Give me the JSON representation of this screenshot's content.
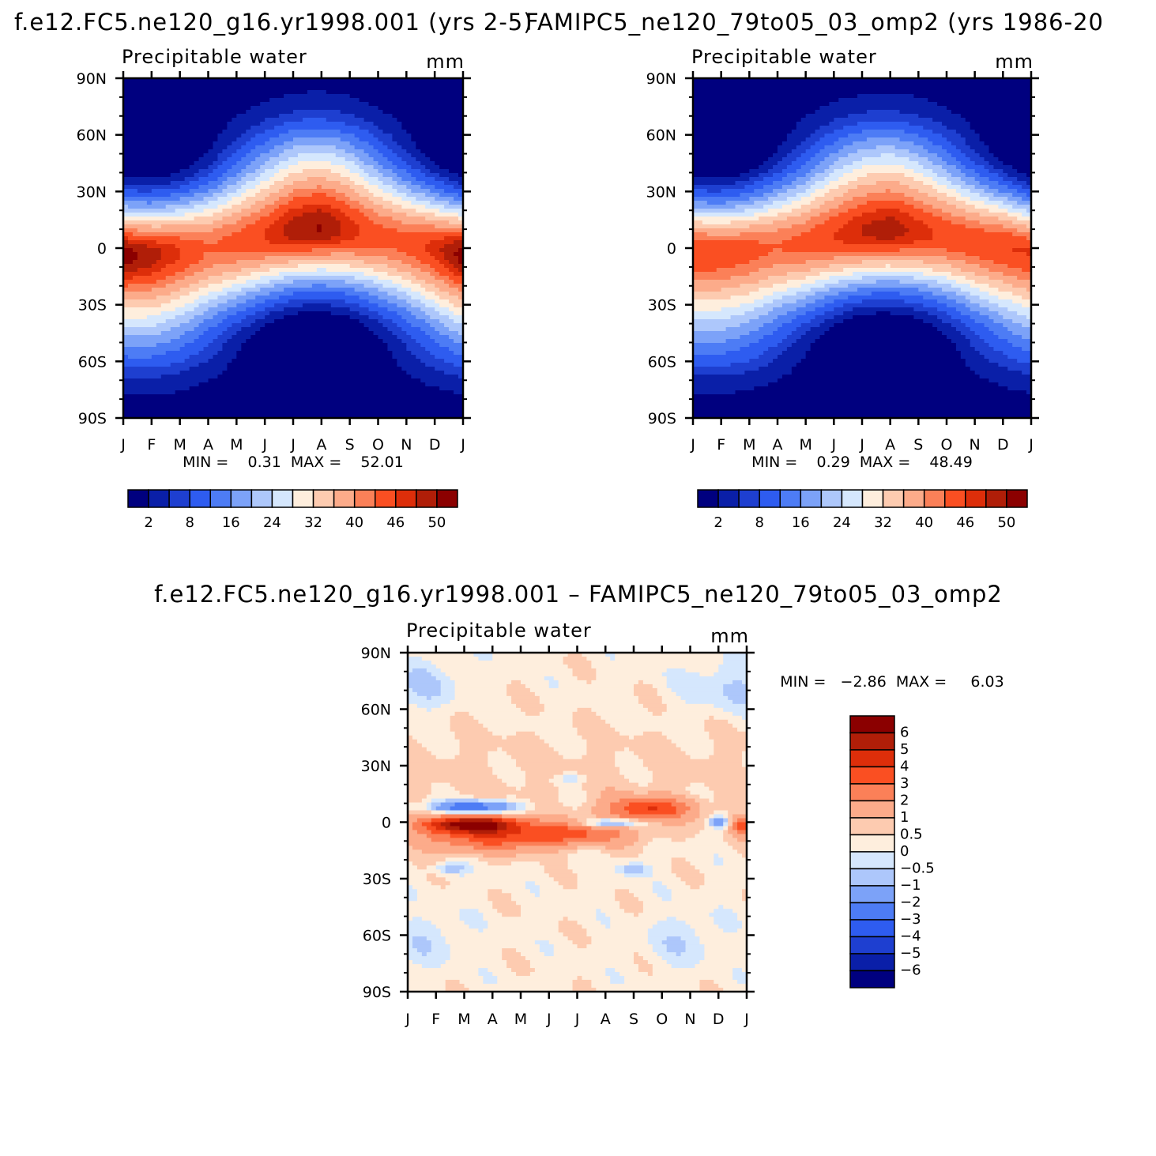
{
  "figure": {
    "title_left": "f.e12.FC5.ne120_g16.yr1998.001 (yrs 2-5)",
    "title_right": "FAMIPC5_ne120_79to05_03_omp2 (yrs 1986-20",
    "title_diff": "f.e12.FC5.ne120_g16.yr1998.001 – FAMIPC5_ne120_79to05_03_omp2"
  },
  "chart_data": [
    {
      "type": "heatmap",
      "id": "model",
      "subtitle": "Precipitable water",
      "units": "mm",
      "x_ticks": [
        "J",
        "F",
        "M",
        "A",
        "M",
        "J",
        "J",
        "A",
        "S",
        "O",
        "N",
        "D",
        "J"
      ],
      "y_ticks": [
        "90N",
        "60N",
        "30N",
        "0",
        "30S",
        "60S",
        "90S"
      ],
      "ylim": [
        -90,
        90
      ],
      "min_label": "MIN =",
      "min_value": "0.31",
      "max_label": "MAX =",
      "max_value": "52.01",
      "stats_text": "MIN =    0.31  MAX =    52.01",
      "levels": [
        2,
        5,
        8,
        12,
        16,
        20,
        24,
        28,
        32,
        36,
        40,
        43,
        46,
        48,
        50
      ],
      "level_labels": [
        "2",
        "8",
        "16",
        "24",
        "32",
        "40",
        "46",
        "50"
      ],
      "colors": [
        "#00007f",
        "#0a1fa8",
        "#1e3fd0",
        "#2e5cf0",
        "#4d7cf5",
        "#7ca2f8",
        "#adc7fb",
        "#d5e7fd",
        "#feeedd",
        "#fdcbb0",
        "#fcab8a",
        "#fb8058",
        "#fa4f22",
        "#dd2e0a",
        "#b01e08",
        "#8b0000"
      ],
      "itcz": [
        -3,
        -3,
        -2,
        0,
        3,
        6,
        9,
        10,
        9,
        6,
        3,
        0,
        -3
      ],
      "peak": [
        51,
        49,
        46,
        43,
        44,
        46,
        49,
        50,
        47,
        44,
        44,
        47,
        51
      ]
    },
    {
      "type": "heatmap",
      "id": "obs",
      "subtitle": "Precipitable water",
      "units": "mm",
      "x_ticks": [
        "J",
        "F",
        "M",
        "A",
        "M",
        "J",
        "J",
        "A",
        "S",
        "O",
        "N",
        "D",
        "J"
      ],
      "y_ticks": [
        "90N",
        "60N",
        "30N",
        "0",
        "30S",
        "60S",
        "90S"
      ],
      "ylim": [
        -90,
        90
      ],
      "min_label": "MIN =",
      "min_value": "0.29",
      "max_label": "MAX =",
      "max_value": "48.49",
      "stats_text": "MIN =    0.29  MAX =    48.49",
      "levels": [
        2,
        5,
        8,
        12,
        16,
        20,
        24,
        28,
        32,
        36,
        40,
        43,
        46,
        48,
        50
      ],
      "level_labels": [
        "2",
        "8",
        "16",
        "24",
        "32",
        "40",
        "46",
        "50"
      ],
      "colors": [
        "#00007f",
        "#0a1fa8",
        "#1e3fd0",
        "#2e5cf0",
        "#4d7cf5",
        "#7ca2f8",
        "#adc7fb",
        "#d5e7fd",
        "#feeedd",
        "#fdcbb0",
        "#fcab8a",
        "#fb8058",
        "#fa4f22",
        "#dd2e0a",
        "#b01e08",
        "#8b0000"
      ],
      "itcz": [
        -2,
        -2,
        -1,
        1,
        3,
        6,
        8,
        9,
        8,
        6,
        3,
        1,
        -2
      ],
      "peak": [
        46,
        45,
        44,
        43,
        44,
        46,
        48,
        49,
        47,
        45,
        45,
        46,
        46
      ]
    },
    {
      "type": "heatmap",
      "id": "diff",
      "subtitle": "Precipitable water",
      "units": "mm",
      "x_ticks": [
        "J",
        "F",
        "M",
        "A",
        "M",
        "J",
        "J",
        "A",
        "S",
        "O",
        "N",
        "D",
        "J"
      ],
      "y_ticks": [
        "90N",
        "60N",
        "30N",
        "0",
        "30S",
        "60S",
        "90S"
      ],
      "ylim": [
        -90,
        90
      ],
      "min_label": "MIN =",
      "min_value": "-2.86",
      "max_label": "MAX =",
      "max_value": "6.03",
      "stats_text": "MIN =   −2.86  MAX =     6.03",
      "levels": [
        -6,
        -5,
        -4,
        -3,
        -2,
        -1,
        -0.5,
        0,
        0.5,
        1,
        2,
        3,
        4,
        5,
        6
      ],
      "level_labels": [
        "6",
        "5",
        "4",
        "3",
        "2",
        "1",
        "0.5",
        "0",
        "−0.5",
        "−1",
        "−2",
        "−3",
        "−4",
        "−5",
        "−6"
      ],
      "colors": [
        "#00007f",
        "#0a1fa8",
        "#1e3fd0",
        "#2e5cf0",
        "#4d7cf5",
        "#7ca2f8",
        "#adc7fb",
        "#d5e7fd",
        "#feeedd",
        "#fdcbb0",
        "#fcab8a",
        "#fb8058",
        "#fa4f22",
        "#dd2e0a",
        "#b01e08",
        "#8b0000"
      ]
    }
  ]
}
